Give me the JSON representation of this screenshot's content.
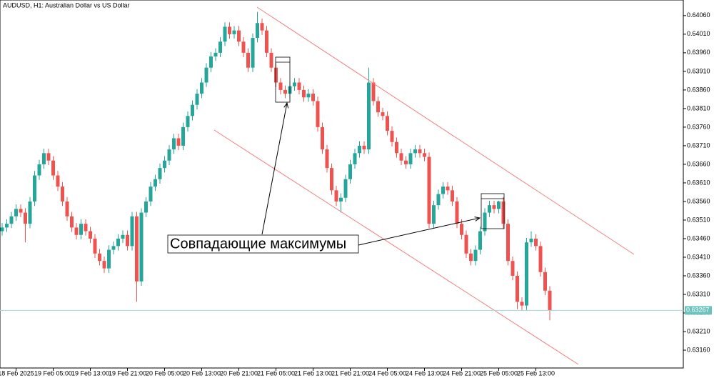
{
  "chart_data": {
    "type": "candlestick",
    "title": "AUDUSD, H1:  Australian Dollar vs US Dollar",
    "annotation": "Совпадающие максимумы",
    "up_color": "#26a69a",
    "down_color": "#ef5350",
    "categories": [
      null,
      null,
      null,
      "18 Feb 2025",
      null,
      null,
      null,
      null,
      null,
      null,
      null,
      "19 Feb 05:00",
      null,
      null,
      null,
      null,
      null,
      null,
      null,
      "19 Feb 13:00",
      null,
      null,
      null,
      null,
      null,
      null,
      null,
      "19 Feb 21:00",
      null,
      null,
      null,
      null,
      null,
      null,
      null,
      "20 Feb 05:00",
      null,
      null,
      null,
      null,
      null,
      null,
      null,
      "20 Feb 13:00",
      null,
      null,
      null,
      null,
      null,
      null,
      null,
      "20 Feb 21:00",
      null,
      null,
      null,
      null,
      null,
      null,
      null,
      "21 Feb 05:00",
      null,
      null,
      null,
      null,
      null,
      null,
      null,
      "21 Feb 13:00",
      null,
      null,
      null,
      null,
      null,
      null,
      null,
      "21 Feb 21:00",
      null,
      null,
      null,
      null,
      null,
      null,
      null,
      "24 Feb 05:00",
      null,
      null,
      null,
      null,
      null,
      null,
      null,
      "24 Feb 13:00",
      null,
      null,
      null,
      null,
      null,
      null,
      null,
      "24 Feb 21:00",
      null,
      null,
      null,
      null,
      null,
      null,
      null,
      "25 Feb 05:00",
      null,
      null,
      null,
      null,
      null,
      null,
      null,
      "25 Feb 13:00",
      null,
      null,
      null
    ],
    "open": [
      0.6348,
      0.6349,
      0.635,
      0.6352,
      0.6354,
      0.6353,
      0.635,
      0.6356,
      0.6363,
      0.6366,
      0.6369,
      0.6367,
      0.6363,
      0.636,
      0.6356,
      0.6352,
      0.6349,
      0.6347,
      0.635,
      0.6348,
      0.6346,
      0.6342,
      0.634,
      0.6338,
      0.6343,
      0.6344,
      0.6346,
      0.6347,
      0.6344,
      0.6352,
      0.63345,
      0.6353,
      0.6356,
      0.636,
      0.6362,
      0.6365,
      0.6367,
      0.637,
      0.6373,
      0.6371,
      0.6376,
      0.6379,
      0.6382,
      0.6385,
      0.6388,
      0.6392,
      0.6395,
      0.6396,
      0.6399,
      0.6403,
      0.6401,
      0.6402,
      0.6399,
      0.6396,
      0.6392,
      0.64,
      0.6404,
      0.6402,
      0.6396,
      0.6392,
      0.6388,
      0.6386,
      0.6385,
      0.6387,
      0.6388,
      0.6386,
      0.6384,
      0.6385,
      0.6383,
      0.6376,
      0.637,
      0.6365,
      0.6359,
      0.6356,
      0.6357,
      0.6362,
      0.6366,
      0.6369,
      0.6371,
      0.637,
      0.6388,
      0.6383,
      0.638,
      0.6379,
      0.6375,
      0.6372,
      0.6369,
      0.6367,
      0.6366,
      0.6369,
      0.637,
      0.6369,
      0.6368,
      0.635,
      0.6355,
      0.6358,
      0.636,
      0.6359,
      0.6356,
      0.635,
      0.6347,
      0.6342,
      0.634,
      0.6343,
      0.6348,
      0.6353,
      0.6355,
      0.6354,
      0.6356,
      0.635,
      0.634,
      0.6336,
      0.6329,
      0.6328,
      0.6345,
      0.6346,
      0.6344,
      0.6337,
      0.6332
    ],
    "high": [
      0.63502,
      0.63512,
      0.63532,
      0.63552,
      0.63552,
      0.63542,
      0.63572,
      0.63642,
      0.63672,
      0.63702,
      0.63702,
      0.63682,
      0.63642,
      0.63612,
      0.63572,
      0.63532,
      0.63502,
      0.63512,
      0.63512,
      0.63492,
      0.63472,
      0.63432,
      0.63412,
      0.63442,
      0.63452,
      0.63472,
      0.63482,
      0.63482,
      0.63532,
      0.63532,
      0.63542,
      0.63572,
      0.63612,
      0.63632,
      0.63662,
      0.63682,
      0.63712,
      0.63742,
      0.63742,
      0.63772,
      0.63802,
      0.63832,
      0.63862,
      0.63892,
      0.63932,
      0.63962,
      0.63972,
      0.64002,
      0.64042,
      0.64042,
      0.64032,
      0.64032,
      0.64002,
      0.63972,
      0.64012,
      0.6407,
      0.64052,
      0.64032,
      0.63972,
      0.63932,
      0.63892,
      0.63872,
      0.63882,
      0.63892,
      0.63892,
      0.63872,
      0.63862,
      0.63862,
      0.63842,
      0.63772,
      0.63712,
      0.63662,
      0.63602,
      0.63582,
      0.63632,
      0.63672,
      0.63702,
      0.63722,
      0.63722,
      0.6392,
      0.63892,
      0.63842,
      0.63812,
      0.63802,
      0.63762,
      0.63732,
      0.63702,
      0.63682,
      0.63702,
      0.63712,
      0.63712,
      0.63702,
      0.63692,
      0.63562,
      0.63592,
      0.63612,
      0.63612,
      0.63602,
      0.63572,
      0.63512,
      0.63482,
      0.63432,
      0.63442,
      0.63492,
      0.63542,
      0.63562,
      0.63562,
      0.63562,
      0.63572,
      0.63512,
      0.63412,
      0.63372,
      0.63302,
      0.63462,
      0.6348,
      0.63472,
      0.63452,
      0.63382,
      0.63332
    ],
    "low": [
      0.63468,
      0.63478,
      0.63488,
      0.63508,
      0.63518,
      0.6345,
      0.63488,
      0.63548,
      0.63618,
      0.63648,
      0.63658,
      0.63618,
      0.63588,
      0.63548,
      0.63508,
      0.63478,
      0.63458,
      0.63458,
      0.63468,
      0.63448,
      0.63408,
      0.63388,
      0.63368,
      0.63368,
      0.63418,
      0.63428,
      0.63448,
      0.63428,
      0.63428,
      0.6329,
      0.63333,
      0.63518,
      0.63548,
      0.63588,
      0.63608,
      0.63638,
      0.63658,
      0.63688,
      0.63698,
      0.63698,
      0.63748,
      0.63778,
      0.63808,
      0.63838,
      0.63868,
      0.63908,
      0.63938,
      0.63948,
      0.63978,
      0.63998,
      0.63998,
      0.63978,
      0.63948,
      0.63908,
      0.63908,
      0.63988,
      0.64008,
      0.63948,
      0.63908,
      0.63868,
      0.63848,
      0.63838,
      0.63838,
      0.63858,
      0.63848,
      0.63828,
      0.63828,
      0.63818,
      0.63748,
      0.63688,
      0.63638,
      0.63578,
      0.63548,
      0.6353,
      0.63558,
      0.63608,
      0.63648,
      0.63678,
      0.63688,
      0.63688,
      0.63818,
      0.63788,
      0.63778,
      0.63738,
      0.63708,
      0.63678,
      0.63658,
      0.63648,
      0.63648,
      0.63678,
      0.63678,
      0.63668,
      0.63488,
      0.63488,
      0.63538,
      0.63568,
      0.63578,
      0.63548,
      0.63488,
      0.63458,
      0.63408,
      0.63388,
      0.63388,
      0.63418,
      0.63468,
      0.63518,
      0.63528,
      0.63528,
      0.63488,
      0.63388,
      0.63348,
      0.6327,
      0.63268,
      0.63268,
      0.63438,
      0.63428,
      0.63358,
      0.63308,
      0.6324
    ],
    "close": [
      0.6349,
      0.635,
      0.6352,
      0.6354,
      0.6353,
      0.635,
      0.6356,
      0.6363,
      0.6366,
      0.6369,
      0.6367,
      0.6363,
      0.636,
      0.6356,
      0.6352,
      0.6349,
      0.6347,
      0.635,
      0.6348,
      0.6346,
      0.6342,
      0.634,
      0.6338,
      0.6343,
      0.6344,
      0.6346,
      0.6347,
      0.6344,
      0.6352,
      0.63345,
      0.6353,
      0.6356,
      0.636,
      0.6362,
      0.6365,
      0.6367,
      0.637,
      0.6373,
      0.6371,
      0.6376,
      0.6379,
      0.6382,
      0.6385,
      0.6388,
      0.6392,
      0.6395,
      0.6396,
      0.6399,
      0.6403,
      0.6401,
      0.6402,
      0.6399,
      0.6396,
      0.6392,
      0.64,
      0.6404,
      0.6402,
      0.6396,
      0.6392,
      0.6388,
      0.6386,
      0.6385,
      0.6387,
      0.6388,
      0.6386,
      0.6384,
      0.6385,
      0.6383,
      0.6376,
      0.637,
      0.6365,
      0.6359,
      0.6356,
      0.6357,
      0.6362,
      0.6366,
      0.6369,
      0.6371,
      0.637,
      0.6388,
      0.6383,
      0.638,
      0.6379,
      0.6375,
      0.6372,
      0.6369,
      0.6367,
      0.6366,
      0.6369,
      0.637,
      0.6369,
      0.6368,
      0.635,
      0.6355,
      0.6358,
      0.636,
      0.6359,
      0.6356,
      0.635,
      0.6347,
      0.6342,
      0.634,
      0.6343,
      0.6348,
      0.6353,
      0.6355,
      0.6354,
      0.6356,
      0.635,
      0.634,
      0.6336,
      0.6329,
      0.6328,
      0.6345,
      0.6346,
      0.6344,
      0.6337,
      0.6332,
      0.63267
    ],
    "current_price": 0.63267,
    "ylim": [
      0.63112,
      0.64102
    ],
    "yticks": [
      {
        "value": 0.6406,
        "label": "0.64060"
      },
      {
        "value": 0.6401,
        "label": "0.64010"
      },
      {
        "value": 0.6396,
        "label": "0.63960"
      },
      {
        "value": 0.6391,
        "label": "0.63910"
      },
      {
        "value": 0.6386,
        "label": "0.63860"
      },
      {
        "value": 0.6381,
        "label": "0.63810"
      },
      {
        "value": 0.6376,
        "label": "0.63760"
      },
      {
        "value": 0.6371,
        "label": "0.63710"
      },
      {
        "value": 0.6366,
        "label": "0.63660"
      },
      {
        "value": 0.6361,
        "label": "0.63610"
      },
      {
        "value": 0.6356,
        "label": "0.63560"
      },
      {
        "value": 0.6351,
        "label": "0.63510"
      },
      {
        "value": 0.6346,
        "label": "0.63460"
      },
      {
        "value": 0.6341,
        "label": "0.63410"
      },
      {
        "value": 0.6336,
        "label": "0.63360"
      },
      {
        "value": 0.6331,
        "label": "0.63310"
      },
      {
        "value": 0.6326,
        "label": "0.63260"
      },
      {
        "value": 0.6321,
        "label": "0.63210"
      },
      {
        "value": 0.6316,
        "label": "0.63160"
      }
    ]
  }
}
